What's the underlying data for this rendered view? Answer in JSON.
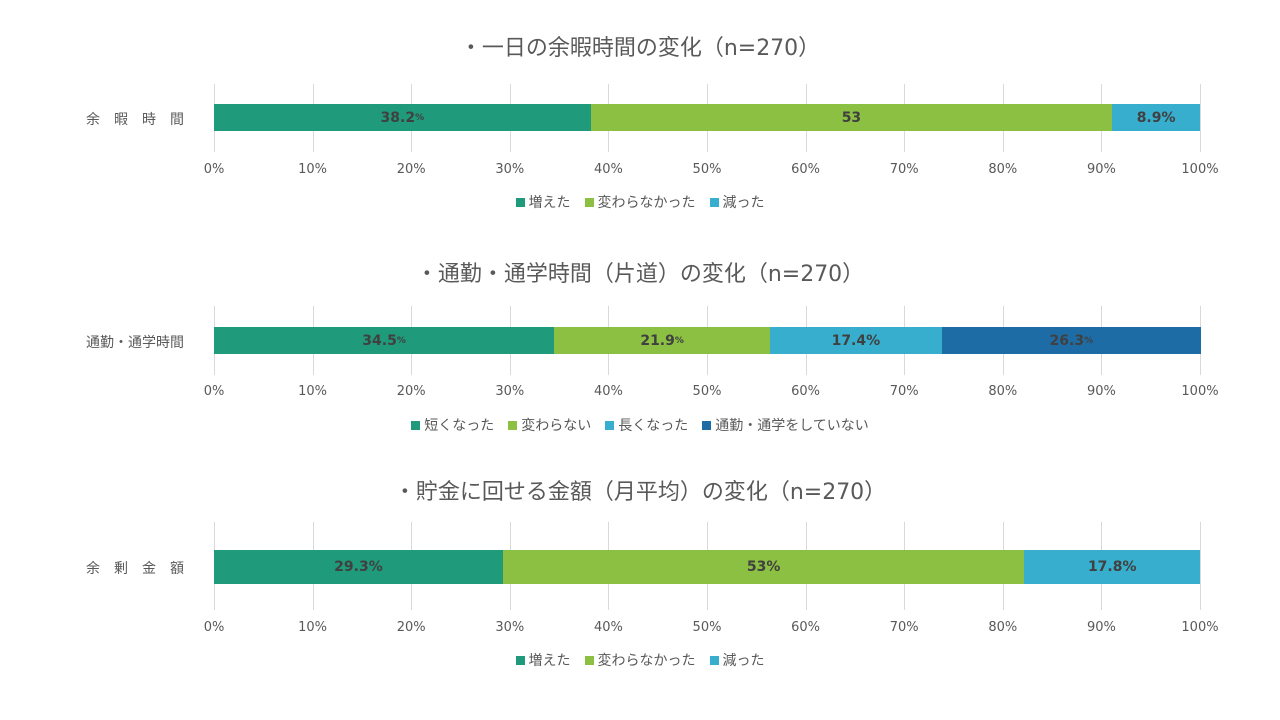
{
  "chart_data": [
    {
      "type": "bar",
      "orientation": "horizontal",
      "stacked": true,
      "title": "・一日の余暇時間の変化（n=270）",
      "categories": [
        "余　暇　時　間"
      ],
      "series": [
        {
          "name": "増えた",
          "values": [
            38.2
          ],
          "label": "38.2",
          "label_unit": "%",
          "color": "#1f9a7b"
        },
        {
          "name": "変わらなかった",
          "values": [
            52.9
          ],
          "label": "53",
          "label_unit": "",
          "color": "#8cc043"
        },
        {
          "name": "減った",
          "values": [
            8.9
          ],
          "label": "8.9%",
          "label_unit": "",
          "color": "#37aecd"
        }
      ],
      "xticks": [
        "0%",
        "10%",
        "20%",
        "30%",
        "40%",
        "50%",
        "60%",
        "70%",
        "80%",
        "90%",
        "100%"
      ],
      "xlim": [
        0,
        100
      ],
      "grid": true,
      "legend": "bottom"
    },
    {
      "type": "bar",
      "orientation": "horizontal",
      "stacked": true,
      "title": "・通勤・通学時間（片道）の変化（n=270）",
      "categories": [
        "通勤・通学時間"
      ],
      "series": [
        {
          "name": "短くなった",
          "values": [
            34.5
          ],
          "label": "34.5",
          "label_unit": "%",
          "color": "#1f9a7b"
        },
        {
          "name": "変わらない",
          "values": [
            21.9
          ],
          "label": "21.9",
          "label_unit": "%",
          "color": "#8cc043"
        },
        {
          "name": "長くなった",
          "values": [
            17.4
          ],
          "label": "17.4%",
          "label_unit": "",
          "color": "#37aecd"
        },
        {
          "name": "通勤・通学をしていない",
          "values": [
            26.3
          ],
          "label": "26.3",
          "label_unit": "%",
          "color": "#1e6ca6"
        }
      ],
      "xticks": [
        "0%",
        "10%",
        "20%",
        "30%",
        "40%",
        "50%",
        "60%",
        "70%",
        "80%",
        "90%",
        "100%"
      ],
      "xlim": [
        0,
        100
      ],
      "grid": true,
      "legend": "bottom"
    },
    {
      "type": "bar",
      "orientation": "horizontal",
      "stacked": true,
      "title": "・貯金に回せる金額（月平均）の変化（n=270）",
      "categories": [
        "余　剰　金　額"
      ],
      "series": [
        {
          "name": "増えた",
          "values": [
            29.3
          ],
          "label": "29.3%",
          "label_unit": "",
          "color": "#1f9a7b"
        },
        {
          "name": "変わらなかった",
          "values": [
            52.9
          ],
          "label": "53%",
          "label_unit": "",
          "color": "#8cc043"
        },
        {
          "name": "減った",
          "values": [
            17.8
          ],
          "label": "17.8%",
          "label_unit": "",
          "color": "#37aecd"
        }
      ],
      "xticks": [
        "0%",
        "10%",
        "20%",
        "30%",
        "40%",
        "50%",
        "60%",
        "70%",
        "80%",
        "90%",
        "100%"
      ],
      "xlim": [
        0,
        100
      ],
      "grid": true,
      "legend": "bottom"
    }
  ]
}
